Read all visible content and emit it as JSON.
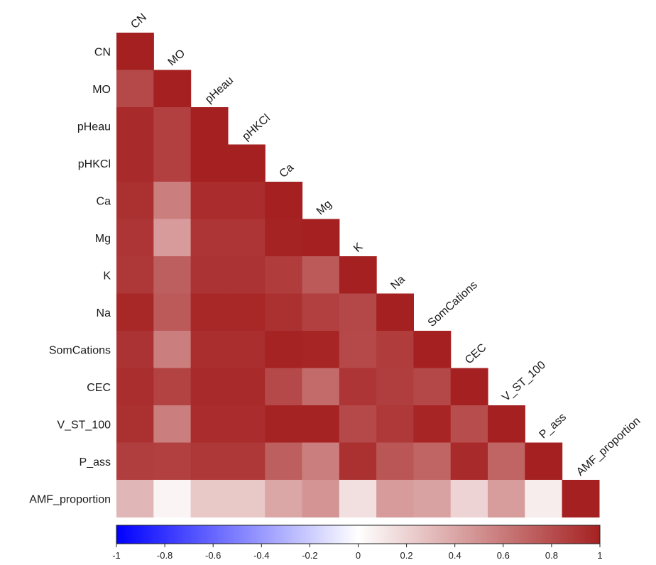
{
  "chart_data": {
    "type": "heatmap",
    "layout": "lower-triangle",
    "variables": [
      "CN",
      "MO",
      "pHeau",
      "pHKCl",
      "Ca",
      "Mg",
      "K",
      "Na",
      "SomCations",
      "CEC",
      "V_ST_100",
      "P_ass",
      "AMF_proportion"
    ],
    "matrix": [
      [
        1.0
      ],
      [
        0.82,
        1.0
      ],
      [
        0.96,
        0.86,
        1.0
      ],
      [
        0.96,
        0.86,
        1.0,
        1.0
      ],
      [
        0.93,
        0.58,
        0.95,
        0.95,
        1.0
      ],
      [
        0.91,
        0.45,
        0.91,
        0.91,
        0.99,
        1.0
      ],
      [
        0.9,
        0.72,
        0.92,
        0.92,
        0.88,
        0.75,
        1.0
      ],
      [
        0.97,
        0.75,
        0.97,
        0.97,
        0.93,
        0.86,
        0.83,
        1.0
      ],
      [
        0.92,
        0.58,
        0.94,
        0.94,
        0.99,
        0.98,
        0.82,
        0.88,
        1.0
      ],
      [
        0.94,
        0.85,
        0.96,
        0.96,
        0.82,
        0.67,
        0.91,
        0.87,
        0.83,
        1.0
      ],
      [
        0.93,
        0.58,
        0.95,
        0.95,
        0.99,
        0.99,
        0.82,
        0.89,
        0.98,
        0.8,
        1.0
      ],
      [
        0.87,
        0.86,
        0.9,
        0.9,
        0.72,
        0.58,
        0.93,
        0.76,
        0.7,
        0.96,
        0.7,
        1.0
      ],
      [
        0.33,
        0.05,
        0.25,
        0.25,
        0.4,
        0.48,
        0.14,
        0.45,
        0.42,
        0.2,
        0.44,
        0.08,
        1.0
      ]
    ],
    "colorbar": {
      "min": -1,
      "max": 1,
      "ticks": [
        "-1",
        "-0.8",
        "-0.6",
        "-0.4",
        "-0.2",
        "0",
        "0.2",
        "0.4",
        "0.6",
        "0.8",
        "1"
      ],
      "colors": {
        "negative": "#0000ff",
        "zero": "#ffffff",
        "positive": "#a52121"
      }
    }
  }
}
